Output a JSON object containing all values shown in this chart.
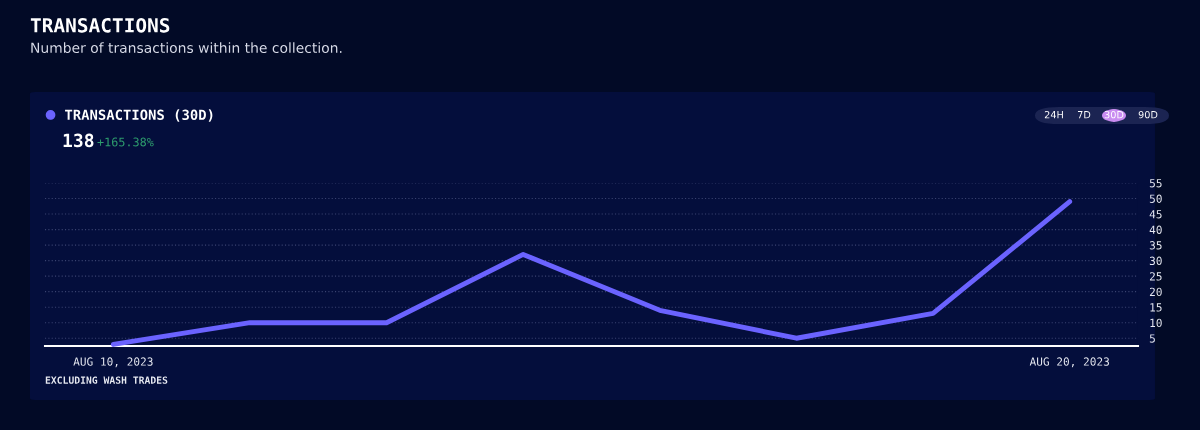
{
  "chart_data": {
    "type": "line",
    "title": "TRANSACTIONS",
    "subtitle": "Number of transactions within the collection.",
    "categories": [
      "AUG 10, 2023",
      null,
      null,
      null,
      null,
      null,
      null,
      "AUG 20, 2023"
    ],
    "series": [
      {
        "name": "TRANSACTIONS (30D)",
        "color": "#6b63ff",
        "values": [
          3,
          10,
          10,
          32,
          14,
          5,
          13,
          49
        ]
      }
    ],
    "ylim": [
      2.5,
      55
    ],
    "yticks": [
      5,
      10,
      15,
      20,
      25,
      30,
      35,
      40,
      45,
      50,
      55
    ],
    "grid": "y",
    "legend": "top left",
    "marker": "none",
    "line_style": "solid",
    "annotations": [
      "138",
      "+165.38%",
      "24H",
      "7D",
      "30D",
      "90D",
      "EXCLUDING WASH TRADES"
    ]
  }
}
